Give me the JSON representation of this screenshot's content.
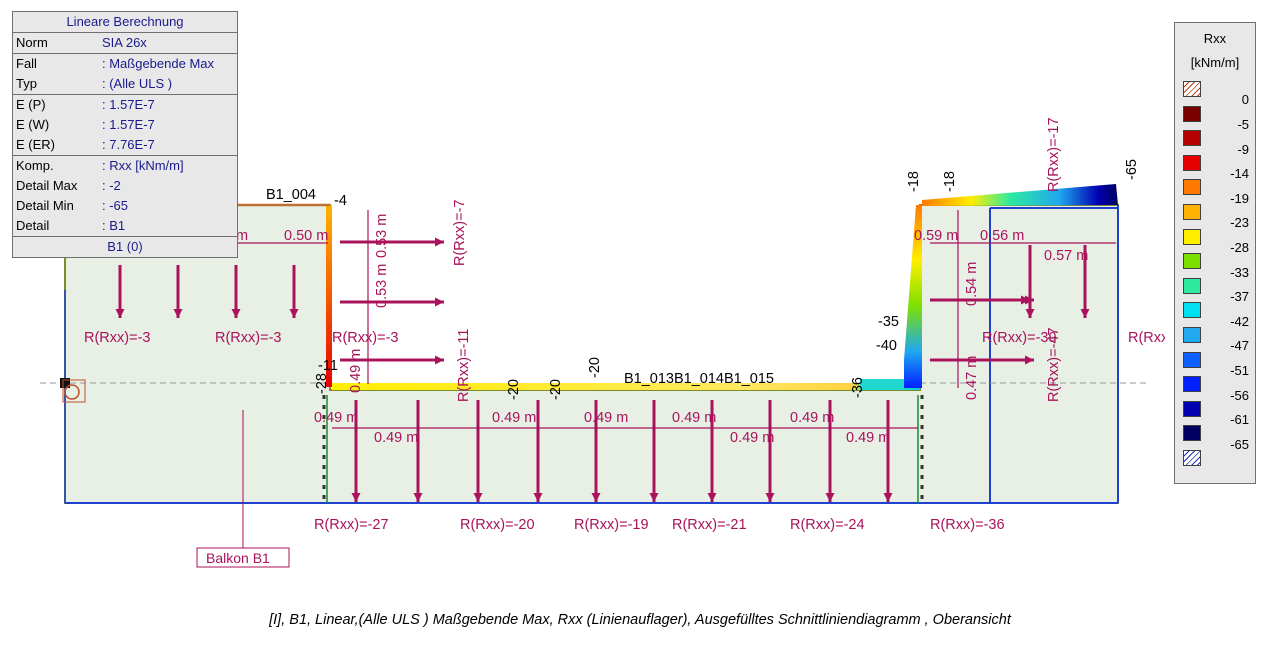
{
  "info_panel": {
    "title": "Lineare Berechnung",
    "rows": [
      {
        "label": "Norm",
        "value": "SIA 26x"
      },
      {
        "label": "Fall",
        "value": ": Maßgebende Max"
      },
      {
        "label": "Typ",
        "value": ": (Alle ULS )"
      },
      {
        "label": "E (P)",
        "value": ": 1.57E-7"
      },
      {
        "label": "E (W)",
        "value": ": 1.57E-7"
      },
      {
        "label": "E (ER)",
        "value": ": 7.76E-7"
      },
      {
        "label": "Komp.",
        "value": ": Rxx [kNm/m]"
      },
      {
        "label": "Detail Max",
        "value": ": -2"
      },
      {
        "label": "Detail Min",
        "value": ": -65"
      },
      {
        "label": "Detail",
        "value": ": B1"
      }
    ],
    "footer": "B1 (0)"
  },
  "legend": {
    "title": "Rxx",
    "unit": "[kNm/m]",
    "entries": [
      {
        "value": "0",
        "color": "#7a0000"
      },
      {
        "value": "-5",
        "color": "#b40000"
      },
      {
        "value": "-9",
        "color": "#e60000"
      },
      {
        "value": "-14",
        "color": "#ff7a00"
      },
      {
        "value": "-19",
        "color": "#ffb300"
      },
      {
        "value": "-23",
        "color": "#ffee00"
      },
      {
        "value": "-28",
        "color": "#7ee000"
      },
      {
        "value": "-33",
        "color": "#2eeaa0"
      },
      {
        "value": "-37",
        "color": "#00e0f0"
      },
      {
        "value": "-42",
        "color": "#20a8f0"
      },
      {
        "value": "-47",
        "color": "#1060ff"
      },
      {
        "value": "-51",
        "color": "#0020ff"
      },
      {
        "value": "-56",
        "color": "#0000b0"
      },
      {
        "value": "-61",
        "color": "#000060"
      },
      {
        "value": "-65",
        "color": ""
      }
    ]
  },
  "drawing": {
    "element_labels": [
      "B1_004",
      "B1_013B1_014B1_015"
    ],
    "reactions": [
      "R(Rxx)=-3",
      "R(Rxx)=-3",
      "R(Rxx)=-3",
      "R(Rxx)=-7",
      "R(Rxx)=-11",
      "R(Rxx)=-17",
      "R(Rxx)=-39",
      "R(Rxx)=-47",
      "R(Rxx",
      "R(Rxx)=-27",
      "R(Rxx)=-20",
      "R(Rxx)=-19",
      "R(Rxx)=-21",
      "R(Rxx)=-24",
      "R(Rxx)=-36"
    ],
    "dimensions": [
      "0.50 m",
      "0.53 m",
      "0.53 m",
      "0.49 m",
      "0.49 m",
      "0.49 m",
      "0.49 m",
      "0.49 m",
      "0.49 m",
      "0.49 m",
      "0.49 m",
      "0.49 m",
      "0.59 m",
      "0.56 m",
      "0.57 m",
      "0.54 m",
      "0.47 m"
    ],
    "values": [
      "-4",
      "-11",
      "-28",
      "-20",
      "-20",
      "-20",
      "-36",
      "-18",
      "-18",
      "-65",
      "-35",
      "-40"
    ],
    "partial_labels": [
      "m"
    ],
    "region_label": "Balkon B1"
  },
  "caption": "[I], B1, Linear,(Alle ULS ) Maßgebende Max, Rxx (Linienauflager), Ausgefülltes Schnittliniendiagramm , Oberansicht"
}
